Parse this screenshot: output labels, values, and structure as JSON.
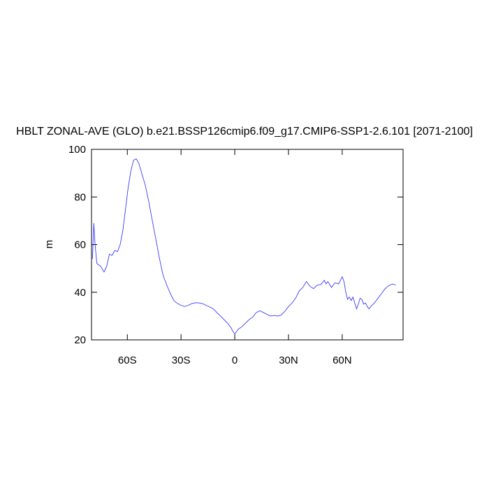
{
  "chart_data": {
    "type": "line",
    "title": "HBLT ZONAL-AVE (GLO) b.e21.BSSP126cmip6.f09_g17.CMIP6-SSP1-2.6.101 [2071-2100]",
    "y_label": "m",
    "xlim": [
      -80,
      94
    ],
    "ylim": [
      20,
      100
    ],
    "xticks": [
      {
        "value": -60,
        "label": "60S"
      },
      {
        "value": -30,
        "label": "30S"
      },
      0,
      {
        "value": 30,
        "label": "30N"
      },
      {
        "value": 60,
        "label": "60N"
      }
    ],
    "yticks": [
      20,
      40,
      60,
      80,
      100
    ],
    "color": "#3a3aff",
    "x": [
      -79.5,
      -78.7,
      -78,
      -77,
      -75,
      -73,
      -71.5,
      -70,
      -68.5,
      -67,
      -65.5,
      -64,
      -62.5,
      -61,
      -59.5,
      -58,
      -56.5,
      -55,
      -53.5,
      -52,
      -50,
      -48,
      -46,
      -44,
      -42,
      -40,
      -38,
      -36,
      -34,
      -32,
      -30,
      -28,
      -26,
      -24,
      -22,
      -20,
      -18,
      -16,
      -14,
      -12,
      -10,
      -8,
      -6,
      -4,
      -2,
      -1,
      0,
      1,
      2,
      4,
      6,
      8,
      10,
      12,
      14,
      16,
      18,
      20,
      22,
      24,
      26,
      28,
      30,
      32,
      34,
      36,
      38,
      40,
      42,
      44,
      46,
      48,
      50,
      51,
      52,
      54,
      56,
      58,
      60,
      61,
      62,
      63,
      64,
      65,
      66,
      67,
      68,
      69,
      70,
      71,
      72,
      73,
      74,
      75,
      76,
      78,
      80,
      82,
      84,
      86,
      88,
      90
    ],
    "values": [
      54,
      69,
      60,
      52,
      51,
      48.5,
      51,
      56,
      55.5,
      57.5,
      57,
      60,
      66,
      75,
      84,
      91,
      95.5,
      96,
      94,
      90,
      85,
      78,
      70,
      62,
      54,
      47,
      43,
      39.5,
      36.5,
      35.3,
      34.5,
      34,
      34.5,
      35.2,
      35.6,
      35.5,
      35.2,
      34.5,
      33.8,
      33,
      31.5,
      30,
      28.5,
      27,
      25,
      23.5,
      22.5,
      23.5,
      24.5,
      25.5,
      27,
      28.5,
      29.5,
      31.5,
      32.2,
      31.5,
      30.7,
      30,
      30.3,
      30,
      30.5,
      32,
      34,
      35.5,
      37.5,
      40.5,
      42,
      44.5,
      42.5,
      41.5,
      43,
      43.2,
      45,
      43.5,
      44.5,
      42,
      44,
      43.5,
      46.5,
      44.5,
      40,
      37,
      38,
      36.5,
      38,
      35.5,
      33,
      35,
      37.5,
      37,
      35,
      35.5,
      34,
      33,
      34,
      35.5,
      37.5,
      39.5,
      41.5,
      42.8,
      43.5,
      43
    ]
  }
}
